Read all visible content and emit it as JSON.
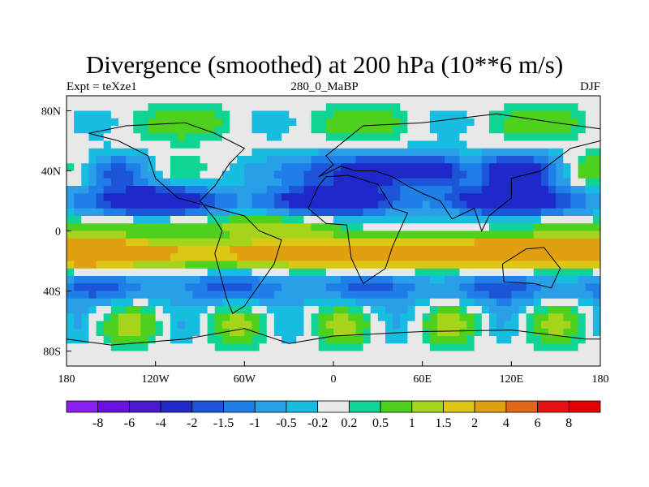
{
  "title": "Divergence (smoothed) at 200 hPa (10**6 m/s)",
  "subtitle_left": "Expt = teXze1",
  "subtitle_center": "280_0_MaBP",
  "subtitle_right": "DJF",
  "chart_data": {
    "type": "heatmap",
    "variable": "Divergence (smoothed) at 200 hPa",
    "units": "10**6 m/s",
    "x_ticks": [
      "180",
      "120W",
      "60W",
      "0",
      "60E",
      "120E",
      "180"
    ],
    "x_tick_values": [
      -180,
      -120,
      -60,
      0,
      60,
      120,
      180
    ],
    "y_ticks": [
      "80N",
      "40N",
      "0",
      "40S",
      "80S"
    ],
    "y_tick_values": [
      80,
      40,
      0,
      -40,
      -80
    ],
    "xlim": [
      -180,
      180
    ],
    "ylim": [
      -90,
      90
    ],
    "colorbar": {
      "labels": [
        "-8",
        "-6",
        "-4",
        "-2",
        "-1.5",
        "-1",
        "-0.5",
        "-0.2",
        "0.2",
        "0.5",
        "1",
        "1.5",
        "2",
        "4",
        "6",
        "8"
      ],
      "colors": [
        "#8b1ef0",
        "#6a10e0",
        "#4a18d0",
        "#1f28c8",
        "#1c55d8",
        "#1f7ee8",
        "#2a9ee6",
        "#16bde0",
        "#e8e8e8",
        "#10d496",
        "#4ed01e",
        "#a6d41a",
        "#dcc814",
        "#e0a010",
        "#e06818",
        "#e81010",
        "#e40000"
      ]
    },
    "bands": [
      {
        "lat_center": 70,
        "amplitude": 0.4,
        "description": "weak mixed, mostly near zero with scattered positive patches"
      },
      {
        "lat_center": 38,
        "amplitude": 1.6,
        "description": "convergence over Eurasia and Pacific (-2 to -4), divergence over east Pacific (+1.5 to +2)"
      },
      {
        "lat_center": 18,
        "amplitude": -1.8,
        "description": "strong negative belt (-1 to -4)"
      },
      {
        "lat_center": -5,
        "amplitude": 0.8,
        "description": "weak mixed"
      },
      {
        "lat_center": -15,
        "amplitude": 2.8,
        "description": "strong divergence belt (+2 to +6), max near 90E-120E"
      },
      {
        "lat_center": -38,
        "amplitude": -1.0,
        "description": "negative belt (-0.5 to -2)"
      },
      {
        "lat_center": -65,
        "amplitude": 0.8,
        "description": "scattered weak positive and negative cells"
      }
    ]
  }
}
